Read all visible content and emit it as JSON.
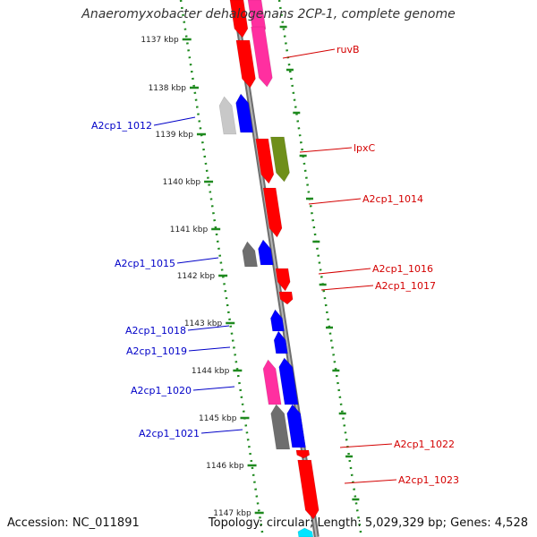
{
  "title": "Anaeromyxobacter dehalogenans 2CP-1, complete genome",
  "accession_text": "Accession: NC_011891",
  "stats_text": "Topology: circular; Length: 5,029,329 bp; Genes: 4,528",
  "colors": {
    "backbone": "#8c8c8c",
    "dots": "#1f8a1f",
    "forward_label": "#d40000",
    "reverse_label": "#0000c8"
  },
  "ticks": [
    {
      "label": "1137 kbp"
    },
    {
      "label": "1138 kbp"
    },
    {
      "label": "1139 kbp"
    },
    {
      "label": "1140 kbp"
    },
    {
      "label": "1141 kbp"
    },
    {
      "label": "1142 kbp"
    },
    {
      "label": "1143 kbp"
    },
    {
      "label": "1144 kbp"
    },
    {
      "label": "1145 kbp"
    },
    {
      "label": "1146 kbp"
    },
    {
      "label": "1147 kbp"
    }
  ],
  "forward_labels": [
    {
      "text": "ruvB"
    },
    {
      "text": "lpxC"
    },
    {
      "text": "A2cp1_1014"
    },
    {
      "text": "A2cp1_1016"
    },
    {
      "text": "A2cp1_1017"
    },
    {
      "text": "A2cp1_1022"
    },
    {
      "text": "A2cp1_1023"
    }
  ],
  "reverse_labels": [
    {
      "text": "A2cp1_1012"
    },
    {
      "text": "A2cp1_1015"
    },
    {
      "text": "A2cp1_1018"
    },
    {
      "text": "A2cp1_1019"
    },
    {
      "text": "A2cp1_1020"
    },
    {
      "text": "A2cp1_1021"
    }
  ]
}
